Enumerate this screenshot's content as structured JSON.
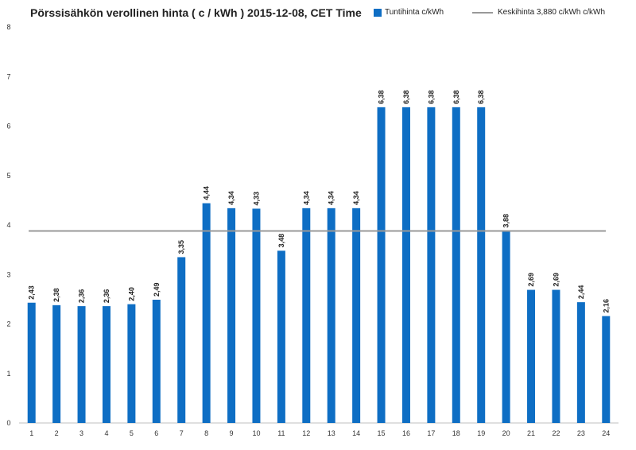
{
  "chart_data": {
    "type": "bar",
    "title": "Pörssisähkön verollinen hinta ( c / kWh ) 2015-12-08, CET Time",
    "categories": [
      "1",
      "2",
      "3",
      "4",
      "5",
      "6",
      "7",
      "8",
      "9",
      "10",
      "11",
      "12",
      "13",
      "14",
      "15",
      "16",
      "17",
      "18",
      "19",
      "20",
      "21",
      "22",
      "23",
      "24"
    ],
    "series": [
      {
        "name": "Tuntihinta c/kWh",
        "color": "#0e6ec4",
        "values": [
          2.43,
          2.38,
          2.36,
          2.36,
          2.4,
          2.49,
          3.35,
          4.44,
          4.34,
          4.33,
          3.48,
          4.34,
          4.34,
          4.34,
          6.38,
          6.38,
          6.38,
          6.38,
          6.38,
          3.88,
          2.69,
          2.69,
          2.44,
          2.16
        ],
        "labels": [
          "2,43",
          "2,38",
          "2,36",
          "2,36",
          "2,40",
          "2,49",
          "3,35",
          "4,44",
          "4,34",
          "4,33",
          "3,48",
          "4,34",
          "4,34",
          "4,34",
          "6,38",
          "6,38",
          "6,38",
          "6,38",
          "6,38",
          "3,88",
          "2,69",
          "2,69",
          "2,44",
          "2,16"
        ]
      }
    ],
    "reference_line": {
      "name": "Keskihinta 3,880 c/kWh c/kWh",
      "value": 3.88,
      "color": "#999999"
    },
    "ylim": [
      0,
      8
    ],
    "yticks": [
      "0",
      "1",
      "2",
      "3",
      "4",
      "5",
      "6",
      "7",
      "8"
    ],
    "xlabel": "",
    "ylabel": "",
    "grid": false,
    "legend_position": "top-right"
  }
}
